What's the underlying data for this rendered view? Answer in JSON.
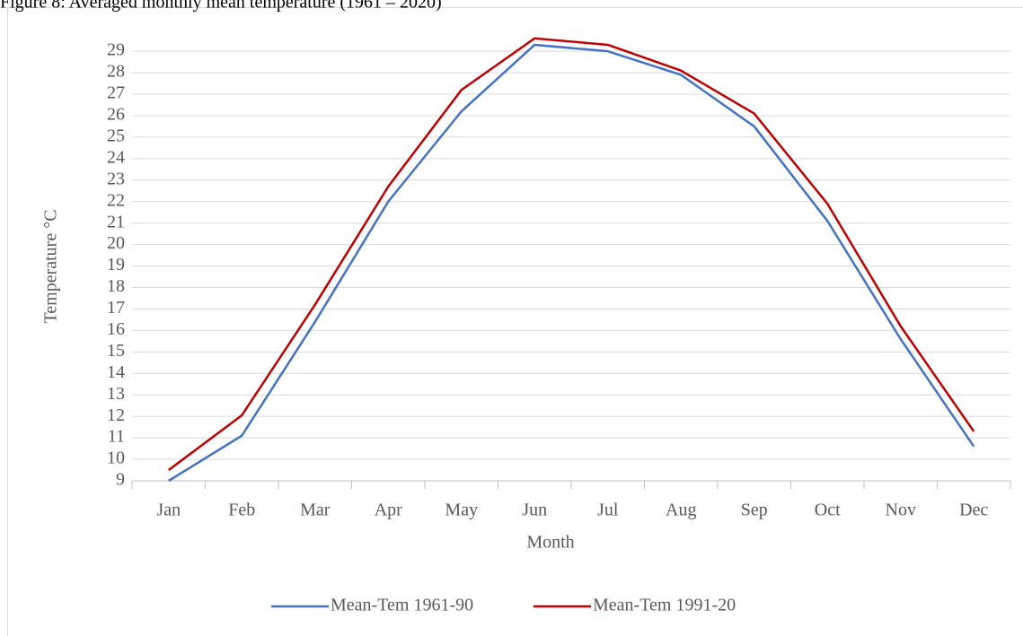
{
  "chart_data": {
    "type": "line",
    "title": "Figure 8: Averaged monthly mean temperature (1961 – 2020)",
    "x_label": "Month",
    "y_label": "Temperature °C",
    "categories": [
      "Jan",
      "Feb",
      "Mar",
      "Apr",
      "May",
      "Jun",
      "Jul",
      "Aug",
      "Sep",
      "Oct",
      "Nov",
      "Dec"
    ],
    "series": [
      {
        "name": "Mean-Tem 1961-90",
        "color": "#4472c4",
        "values": [
          9.0,
          11.1,
          16.4,
          22.0,
          26.2,
          29.3,
          29.0,
          27.9,
          25.5,
          21.1,
          15.6,
          10.6
        ]
      },
      {
        "name": "Mean-Tem 1991-20",
        "color": "#c00000",
        "values": [
          9.5,
          12.05,
          17.2,
          22.7,
          27.2,
          29.6,
          29.3,
          28.1,
          26.1,
          21.9,
          16.2,
          11.3
        ]
      }
    ],
    "ylim": [
      9,
      29.8
    ],
    "yticks": [
      9,
      10,
      11,
      12,
      13,
      14,
      15,
      16,
      17,
      18,
      19,
      20,
      21,
      22,
      23,
      24,
      25,
      26,
      27,
      28,
      29
    ],
    "grid": true,
    "legend": "bottom"
  }
}
